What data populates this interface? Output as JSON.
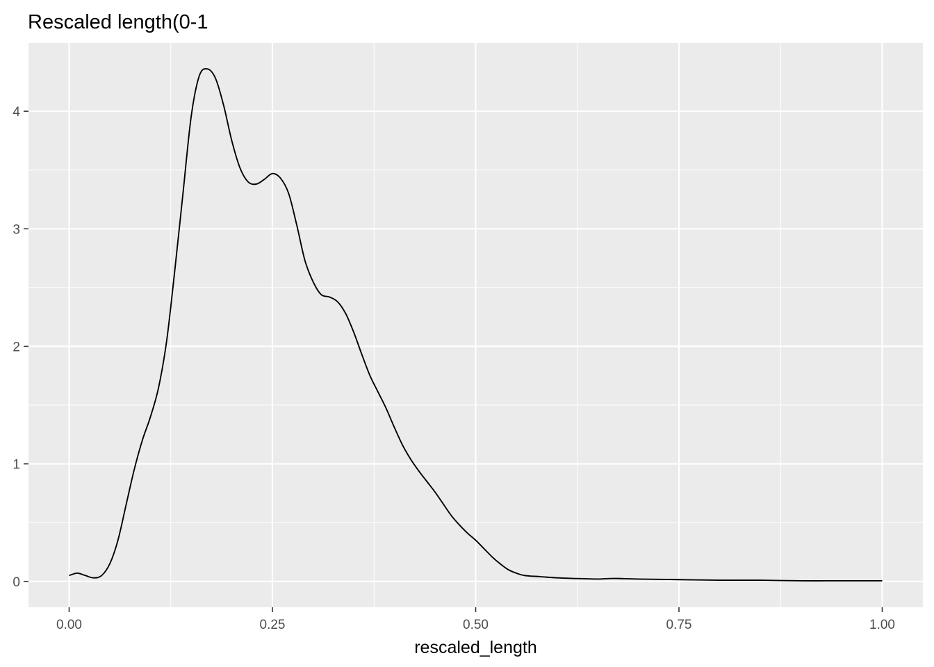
{
  "chart_data": {
    "type": "line",
    "title": "Rescaled length(0-1",
    "xlabel": "rescaled_length",
    "ylabel": "",
    "xlim": [
      -0.05,
      1.05
    ],
    "ylim": [
      -0.22,
      4.58
    ],
    "x_ticks": [
      0.0,
      0.25,
      0.5,
      0.75,
      1.0
    ],
    "x_tick_labels": [
      "0.00",
      "0.25",
      "0.50",
      "0.75",
      "1.00"
    ],
    "y_ticks": [
      0,
      1,
      2,
      3,
      4
    ],
    "y_tick_labels": [
      "0",
      "1",
      "2",
      "3",
      "4"
    ],
    "grid": true,
    "background": "#ebebeb",
    "line_color": "#000000",
    "series": [
      {
        "x": [
          0.0,
          0.01,
          0.02,
          0.03,
          0.04,
          0.05,
          0.06,
          0.07,
          0.08,
          0.09,
          0.1,
          0.11,
          0.12,
          0.13,
          0.14,
          0.15,
          0.16,
          0.17,
          0.18,
          0.19,
          0.2,
          0.21,
          0.22,
          0.23,
          0.24,
          0.25,
          0.26,
          0.27,
          0.28,
          0.29,
          0.3,
          0.31,
          0.32,
          0.33,
          0.34,
          0.35,
          0.36,
          0.37,
          0.38,
          0.39,
          0.4,
          0.41,
          0.42,
          0.43,
          0.44,
          0.45,
          0.46,
          0.47,
          0.48,
          0.49,
          0.5,
          0.51,
          0.52,
          0.53,
          0.54,
          0.55,
          0.56,
          0.58,
          0.6,
          0.62,
          0.65,
          0.67,
          0.7,
          0.75,
          0.8,
          0.85,
          0.9,
          0.95,
          1.0
        ],
        "y": [
          0.05,
          0.07,
          0.05,
          0.03,
          0.05,
          0.15,
          0.35,
          0.65,
          0.95,
          1.2,
          1.4,
          1.65,
          2.05,
          2.65,
          3.3,
          3.95,
          4.3,
          4.36,
          4.28,
          4.05,
          3.75,
          3.52,
          3.4,
          3.38,
          3.42,
          3.47,
          3.43,
          3.3,
          3.03,
          2.73,
          2.55,
          2.44,
          2.42,
          2.38,
          2.28,
          2.12,
          1.93,
          1.75,
          1.61,
          1.47,
          1.31,
          1.16,
          1.04,
          0.94,
          0.85,
          0.76,
          0.66,
          0.56,
          0.48,
          0.41,
          0.35,
          0.28,
          0.21,
          0.15,
          0.1,
          0.07,
          0.05,
          0.04,
          0.03,
          0.025,
          0.02,
          0.025,
          0.02,
          0.015,
          0.01,
          0.01,
          0.005,
          0.005,
          0.005
        ]
      }
    ]
  }
}
